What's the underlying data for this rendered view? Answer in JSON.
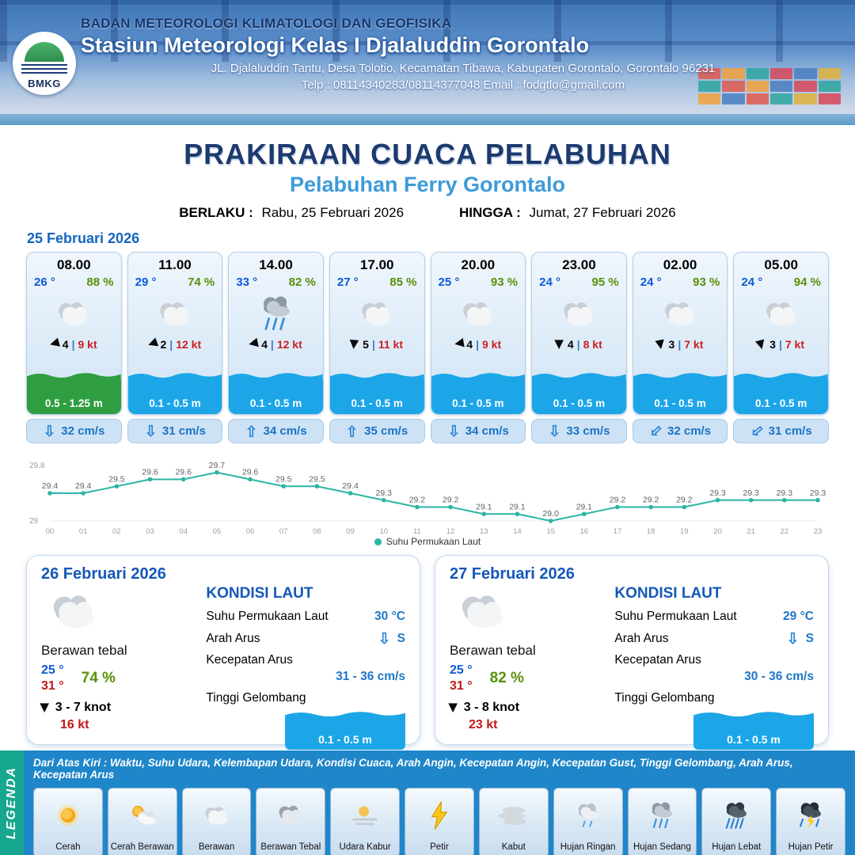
{
  "header": {
    "logo": "BMKG",
    "agency": "BADAN METEOROLOGI KLIMATOLOGI DAN GEOFISIKA",
    "station": "Stasiun Meteorologi Kelas I Djalaluddin Gorontalo",
    "address": "JL. Djalaluddin Tantu, Desa Tolotio, Kecamatan Tibawa, Kabupaten Gorontalo, Gorontalo 96231",
    "contact": "Telp : 08114340283/08114377048 Email : fodgtlo@gmail.com"
  },
  "title": {
    "main": "PRAKIRAAN CUACA PELABUHAN",
    "sub": "Pelabuhan Ferry Gorontalo",
    "valid_label": "BERLAKU :",
    "valid_value": "Rabu, 25 Februari 2026",
    "until_label": "HINGGA :",
    "until_value": "Jumat, 27 Februari 2026"
  },
  "forecast_date": "25 Februari 2026",
  "labels": {
    "wind_sep": "|"
  },
  "hourly": [
    {
      "time": "08.00",
      "temp": "26 °",
      "humidity": "88 %",
      "icon": "berawan",
      "wind_icon": "arrow-solid",
      "wind_deg": 165,
      "wind_speed": "4",
      "gust": "9 kt",
      "wave": "0.5 - 1.25 m",
      "wave_color": "#2f9e41",
      "current_icon": "arrow-hollow",
      "current_deg": 90,
      "current": "32 cm/s"
    },
    {
      "time": "11.00",
      "temp": "29 °",
      "humidity": "74 %",
      "icon": "berawan",
      "wind_icon": "arrow-solid",
      "wind_deg": 160,
      "wind_speed": "2",
      "gust": "12 kt",
      "wave": "0.1 - 0.5 m",
      "wave_color": "#1ca6e8",
      "current_icon": "arrow-hollow",
      "current_deg": 90,
      "current": "31 cm/s"
    },
    {
      "time": "14.00",
      "temp": "33 °",
      "humidity": "82 %",
      "icon": "hujan-sedang",
      "wind_icon": "arrow-solid",
      "wind_deg": 168,
      "wind_speed": "4",
      "gust": "12 kt",
      "wave": "0.1 - 0.5 m",
      "wave_color": "#1ca6e8",
      "current_icon": "arrow-hollow",
      "current_deg": -90,
      "current": "34 cm/s"
    },
    {
      "time": "17.00",
      "temp": "27 °",
      "humidity": "85 %",
      "icon": "berawan",
      "wind_icon": "arrow-solid",
      "wind_deg": 95,
      "wind_speed": "5",
      "gust": "11 kt",
      "wave": "0.1 - 0.5 m",
      "wave_color": "#1ca6e8",
      "current_icon": "arrow-hollow",
      "current_deg": -90,
      "current": "35 cm/s"
    },
    {
      "time": "20.00",
      "temp": "25 °",
      "humidity": "93 %",
      "icon": "berawan",
      "wind_icon": "arrow-solid",
      "wind_deg": 170,
      "wind_speed": "4",
      "gust": "9 kt",
      "wave": "0.1 - 0.5 m",
      "wave_color": "#1ca6e8",
      "current_icon": "arrow-hollow",
      "current_deg": 90,
      "current": "34 cm/s"
    },
    {
      "time": "23.00",
      "temp": "24 °",
      "humidity": "95 %",
      "icon": "berawan",
      "wind_icon": "arrow-solid",
      "wind_deg": 90,
      "wind_speed": "4",
      "gust": "8 kt",
      "wave": "0.1 - 0.5 m",
      "wave_color": "#1ca6e8",
      "current_icon": "arrow-hollow",
      "current_deg": 90,
      "current": "33 cm/s"
    },
    {
      "time": "02.00",
      "temp": "24 °",
      "humidity": "93 %",
      "icon": "berawan",
      "wind_icon": "arrow-solid",
      "wind_deg": 80,
      "wind_speed": "3",
      "gust": "7 kt",
      "wave": "0.1 - 0.5 m",
      "wave_color": "#1ca6e8",
      "current_icon": "arrow-hollow",
      "current_deg": 135,
      "current": "32 cm/s"
    },
    {
      "time": "05.00",
      "temp": "24 °",
      "humidity": "94 %",
      "icon": "berawan",
      "wind_icon": "arrow-solid",
      "wind_deg": 75,
      "wind_speed": "3",
      "gust": "7 kt",
      "wave": "0.1 - 0.5 m",
      "wave_color": "#1ca6e8",
      "current_icon": "arrow-hollow",
      "current_deg": 140,
      "current": "31 cm/s"
    }
  ],
  "chart_data": {
    "type": "line",
    "legend": "Suhu Permukaan Laut",
    "x": [
      "00",
      "01",
      "02",
      "03",
      "04",
      "05",
      "06",
      "07",
      "08",
      "09",
      "10",
      "11",
      "12",
      "13",
      "14",
      "15",
      "16",
      "17",
      "18",
      "19",
      "20",
      "21",
      "22",
      "23"
    ],
    "values": [
      29.4,
      29.4,
      29.5,
      29.6,
      29.6,
      29.7,
      29.6,
      29.5,
      29.5,
      29.4,
      29.3,
      29.2,
      29.2,
      29.1,
      29.1,
      29.0,
      29.1,
      29.2,
      29.2,
      29.2,
      29.3,
      29.3,
      29.3,
      29.3
    ],
    "ylim": [
      29,
      29.8
    ],
    "line_color": "#2cb5a5",
    "grid": false,
    "legend_position": "bottom"
  },
  "daily": [
    {
      "date": "26 Februari 2026",
      "icon": "berawan",
      "condition": "Berawan tebal",
      "temp_min": "25 °",
      "temp_max": "31 °",
      "humidity": "74 %",
      "wind_icon": "arrow-solid",
      "wind_deg": 90,
      "wind": "3  - 7 knot",
      "gust": "16 kt",
      "sea": {
        "heading": "KONDISI LAUT",
        "sst_label": "Suhu Permukaan Laut",
        "sst": "30 °C",
        "dir_label": "Arah Arus",
        "dir": "S",
        "dir_icon": "arrow-hollow",
        "dir_deg": 90,
        "speed_label": "Kecepatan Arus",
        "speed": "31  - 36 cm/s",
        "wave_label": "Tinggi Gelombang",
        "wave": "0.1 - 0.5 m",
        "wave_color": "#1ca6e8"
      }
    },
    {
      "date": "27 Februari 2026",
      "icon": "berawan",
      "condition": "Berawan tebal",
      "temp_min": "25 °",
      "temp_max": "31 °",
      "humidity": "82 %",
      "wind_icon": "arrow-solid",
      "wind_deg": 90,
      "wind": "3  - 8 knot",
      "gust": "23 kt",
      "sea": {
        "heading": "KONDISI LAUT",
        "sst_label": "Suhu Permukaan Laut",
        "sst": "29 °C",
        "dir_label": "Arah Arus",
        "dir": "S",
        "dir_icon": "arrow-hollow",
        "dir_deg": 90,
        "speed_label": "Kecepatan Arus",
        "speed": "30  - 36 cm/s",
        "wave_label": "Tinggi Gelombang",
        "wave": "0.1 - 0.5 m",
        "wave_color": "#1ca6e8"
      }
    }
  ],
  "legend": {
    "strip": "LEGENDA",
    "description": "Dari Atas Kiri : Waktu, Suhu Udara, Kelembapan Udara, Kondisi Cuaca, Arah Angin, Kecepatan Angin, Kecepatan Gust, Tinggi Gelombang, Arah Arus, Kecepatan Arus",
    "items": [
      {
        "label": "Cerah",
        "icon": "cerah"
      },
      {
        "label": "Cerah Berawan",
        "icon": "cerah-berawan"
      },
      {
        "label": "Berawan",
        "icon": "berawan"
      },
      {
        "label": "Berawan Tebal",
        "icon": "berawan-tebal"
      },
      {
        "label": "Udara Kabur",
        "icon": "udara-kabur"
      },
      {
        "label": "Petir",
        "icon": "petir"
      },
      {
        "label": "Kabut",
        "icon": "kabut"
      },
      {
        "label": "Hujan Ringan",
        "icon": "hujan-ringan"
      },
      {
        "label": "Hujan Sedang",
        "icon": "hujan-sedang"
      },
      {
        "label": "Hujan Lebat",
        "icon": "hujan-lebat"
      },
      {
        "label": "Hujan Petir",
        "icon": "hujan-petir"
      }
    ]
  }
}
